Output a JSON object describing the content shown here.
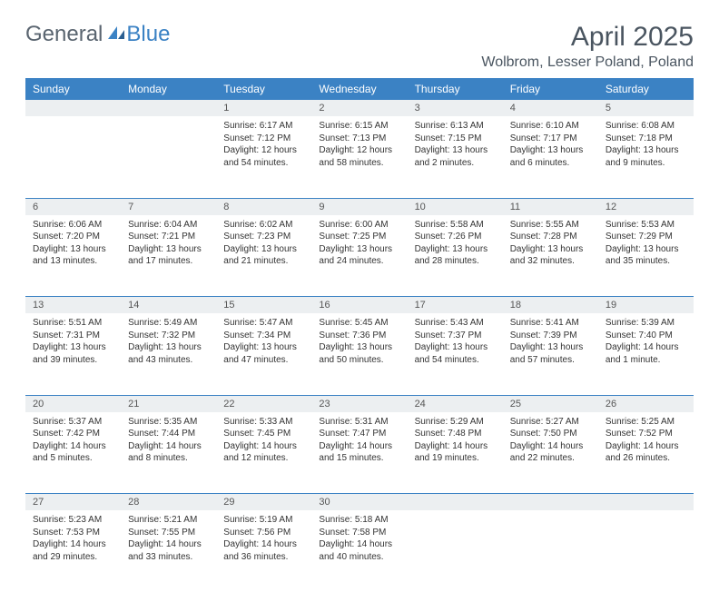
{
  "logo": {
    "text_a": "General",
    "text_b": "Blue"
  },
  "title": "April 2025",
  "location": "Wolbrom, Lesser Poland, Poland",
  "colors": {
    "header_bg": "#3b82c4",
    "header_text": "#ffffff",
    "daynum_bg": "#eceff1",
    "rule": "#3b82c4",
    "body_text": "#333333",
    "title_text": "#4a5560"
  },
  "fonts": {
    "title_size": 30,
    "location_size": 16,
    "th_size": 12,
    "daynum_size": 11,
    "cell_size": 10
  },
  "week_headers": [
    "Sunday",
    "Monday",
    "Tuesday",
    "Wednesday",
    "Thursday",
    "Friday",
    "Saturday"
  ],
  "weeks": [
    [
      null,
      null,
      {
        "n": "1",
        "sr": "6:17 AM",
        "ss": "7:12 PM",
        "dl": "12 hours and 54 minutes."
      },
      {
        "n": "2",
        "sr": "6:15 AM",
        "ss": "7:13 PM",
        "dl": "12 hours and 58 minutes."
      },
      {
        "n": "3",
        "sr": "6:13 AM",
        "ss": "7:15 PM",
        "dl": "13 hours and 2 minutes."
      },
      {
        "n": "4",
        "sr": "6:10 AM",
        "ss": "7:17 PM",
        "dl": "13 hours and 6 minutes."
      },
      {
        "n": "5",
        "sr": "6:08 AM",
        "ss": "7:18 PM",
        "dl": "13 hours and 9 minutes."
      }
    ],
    [
      {
        "n": "6",
        "sr": "6:06 AM",
        "ss": "7:20 PM",
        "dl": "13 hours and 13 minutes."
      },
      {
        "n": "7",
        "sr": "6:04 AM",
        "ss": "7:21 PM",
        "dl": "13 hours and 17 minutes."
      },
      {
        "n": "8",
        "sr": "6:02 AM",
        "ss": "7:23 PM",
        "dl": "13 hours and 21 minutes."
      },
      {
        "n": "9",
        "sr": "6:00 AM",
        "ss": "7:25 PM",
        "dl": "13 hours and 24 minutes."
      },
      {
        "n": "10",
        "sr": "5:58 AM",
        "ss": "7:26 PM",
        "dl": "13 hours and 28 minutes."
      },
      {
        "n": "11",
        "sr": "5:55 AM",
        "ss": "7:28 PM",
        "dl": "13 hours and 32 minutes."
      },
      {
        "n": "12",
        "sr": "5:53 AM",
        "ss": "7:29 PM",
        "dl": "13 hours and 35 minutes."
      }
    ],
    [
      {
        "n": "13",
        "sr": "5:51 AM",
        "ss": "7:31 PM",
        "dl": "13 hours and 39 minutes."
      },
      {
        "n": "14",
        "sr": "5:49 AM",
        "ss": "7:32 PM",
        "dl": "13 hours and 43 minutes."
      },
      {
        "n": "15",
        "sr": "5:47 AM",
        "ss": "7:34 PM",
        "dl": "13 hours and 47 minutes."
      },
      {
        "n": "16",
        "sr": "5:45 AM",
        "ss": "7:36 PM",
        "dl": "13 hours and 50 minutes."
      },
      {
        "n": "17",
        "sr": "5:43 AM",
        "ss": "7:37 PM",
        "dl": "13 hours and 54 minutes."
      },
      {
        "n": "18",
        "sr": "5:41 AM",
        "ss": "7:39 PM",
        "dl": "13 hours and 57 minutes."
      },
      {
        "n": "19",
        "sr": "5:39 AM",
        "ss": "7:40 PM",
        "dl": "14 hours and 1 minute."
      }
    ],
    [
      {
        "n": "20",
        "sr": "5:37 AM",
        "ss": "7:42 PM",
        "dl": "14 hours and 5 minutes."
      },
      {
        "n": "21",
        "sr": "5:35 AM",
        "ss": "7:44 PM",
        "dl": "14 hours and 8 minutes."
      },
      {
        "n": "22",
        "sr": "5:33 AM",
        "ss": "7:45 PM",
        "dl": "14 hours and 12 minutes."
      },
      {
        "n": "23",
        "sr": "5:31 AM",
        "ss": "7:47 PM",
        "dl": "14 hours and 15 minutes."
      },
      {
        "n": "24",
        "sr": "5:29 AM",
        "ss": "7:48 PM",
        "dl": "14 hours and 19 minutes."
      },
      {
        "n": "25",
        "sr": "5:27 AM",
        "ss": "7:50 PM",
        "dl": "14 hours and 22 minutes."
      },
      {
        "n": "26",
        "sr": "5:25 AM",
        "ss": "7:52 PM",
        "dl": "14 hours and 26 minutes."
      }
    ],
    [
      {
        "n": "27",
        "sr": "5:23 AM",
        "ss": "7:53 PM",
        "dl": "14 hours and 29 minutes."
      },
      {
        "n": "28",
        "sr": "5:21 AM",
        "ss": "7:55 PM",
        "dl": "14 hours and 33 minutes."
      },
      {
        "n": "29",
        "sr": "5:19 AM",
        "ss": "7:56 PM",
        "dl": "14 hours and 36 minutes."
      },
      {
        "n": "30",
        "sr": "5:18 AM",
        "ss": "7:58 PM",
        "dl": "14 hours and 40 minutes."
      },
      null,
      null,
      null
    ]
  ],
  "labels": {
    "sunrise_prefix": "Sunrise: ",
    "sunset_prefix": "Sunset: ",
    "daylight_prefix": "Daylight: "
  }
}
